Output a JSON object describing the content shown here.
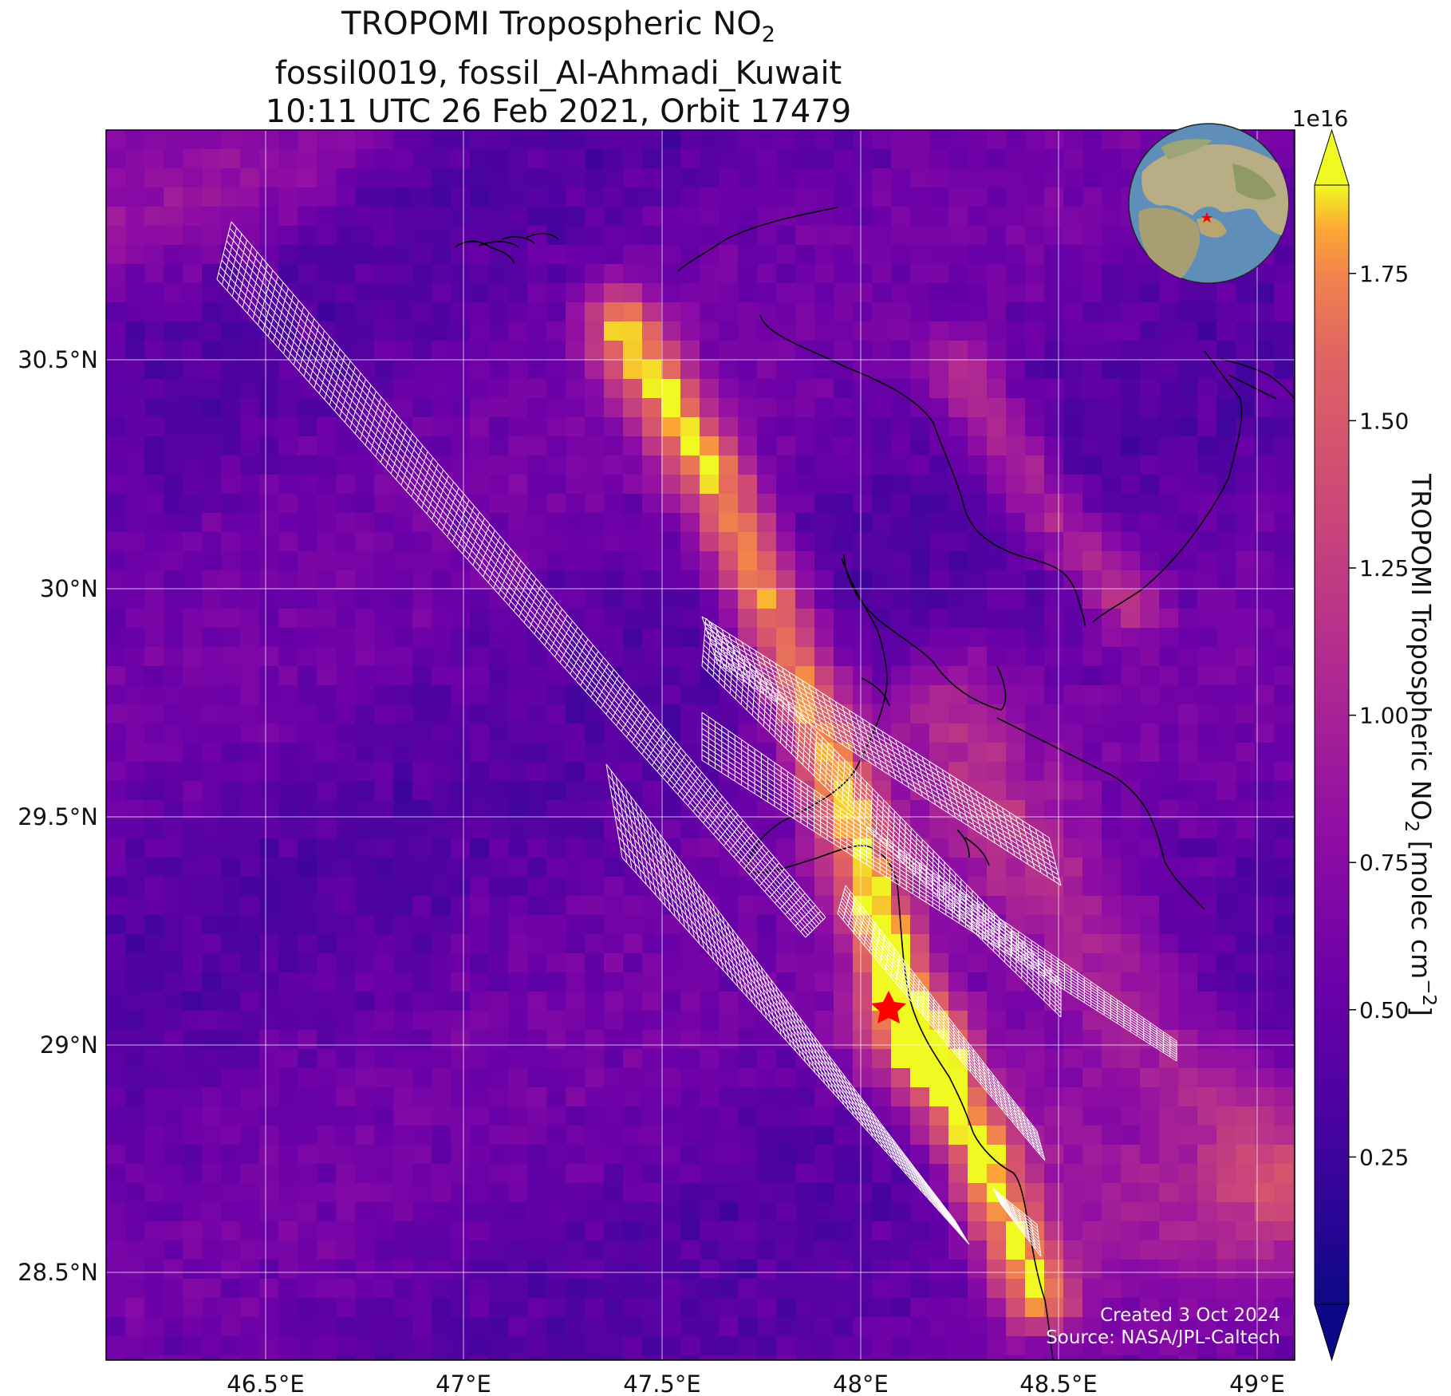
{
  "title": {
    "line1_prefix": "TROPOMI Tropospheric NO",
    "line1_sub": "2",
    "line2": "fossil0019, fossil_Al-Ahmadi_Kuwait",
    "line3": "10:11 UTC 26 Feb 2021, Orbit 17479"
  },
  "axes": {
    "x_ticks": [
      "46.5°E",
      "47°E",
      "47.5°E",
      "48°E",
      "48.5°E",
      "49°E"
    ],
    "y_ticks": [
      "30.5°N",
      "30°N",
      "29.5°N",
      "29°N",
      "28.5°N"
    ],
    "lon_range": [
      46.1,
      49.1
    ],
    "lat_range": [
      28.3,
      31.0
    ]
  },
  "colorbar": {
    "label_prefix": "TROPOMI Tropospheric NO",
    "label_sub": "2",
    "label_suffix": " [molec cm",
    "label_sup": "−2",
    "label_end": "]",
    "exponent": "1e16",
    "ticks": [
      "0.25",
      "0.50",
      "0.75",
      "1.00",
      "1.25",
      "1.50",
      "1.75"
    ],
    "tick_values": [
      0.25,
      0.5,
      0.75,
      1.0,
      1.25,
      1.5,
      1.75
    ],
    "range": [
      0.0,
      1.9
    ],
    "colormap": "plasma",
    "extend": "both"
  },
  "source_marker": {
    "label": "Al-Ahmadi",
    "lon": 48.07,
    "lat": 29.09,
    "color": "#ff0000"
  },
  "inset_globe": {
    "marker_color": "#ff0000"
  },
  "credits": {
    "created": "Created 3 Oct 2024",
    "source": "Source: NASA/JPL-Caltech"
  }
}
